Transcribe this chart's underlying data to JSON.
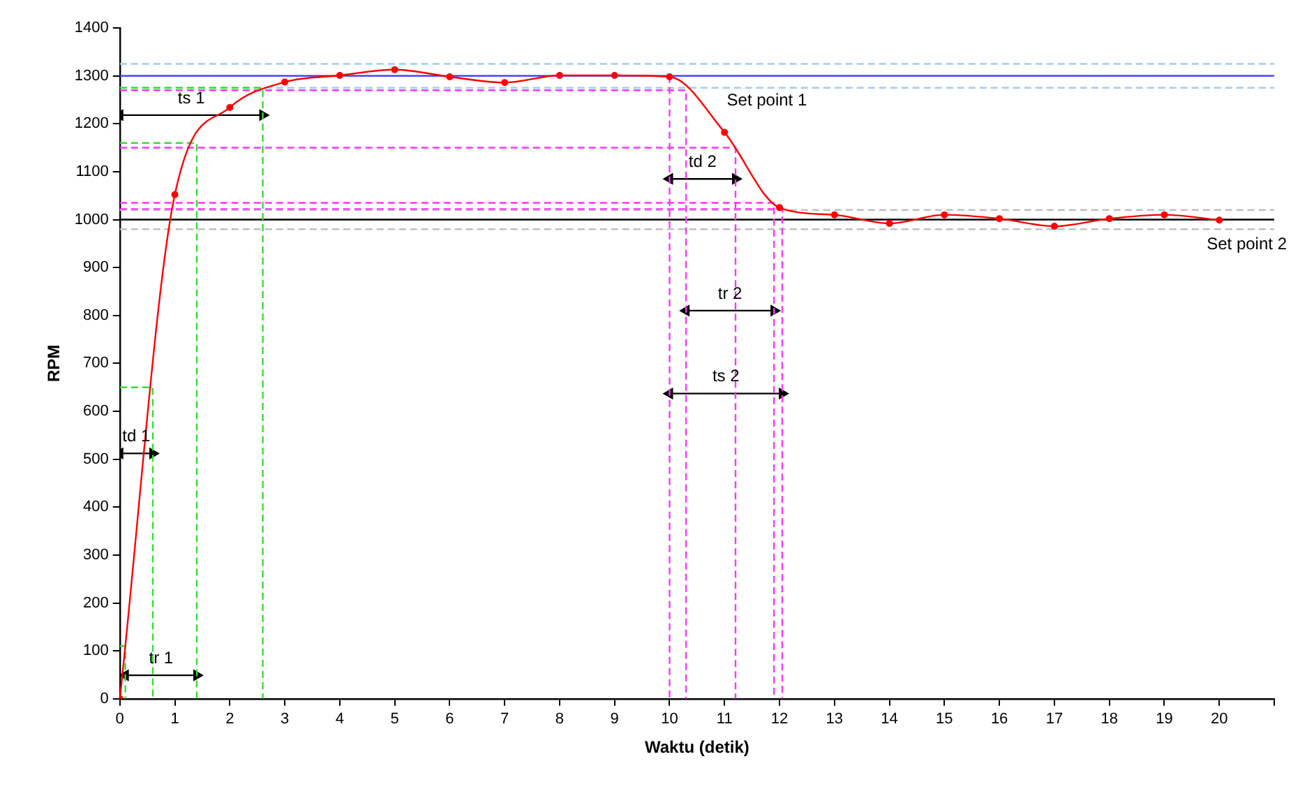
{
  "chart_data": {
    "type": "line",
    "xlabel": "Waktu (detik)",
    "ylabel": "RPM",
    "xlim": [
      0,
      21
    ],
    "xticks": [
      0,
      1,
      2,
      3,
      4,
      5,
      6,
      7,
      8,
      9,
      10,
      11,
      12,
      13,
      14,
      15,
      16,
      17,
      18,
      19,
      20,
      {
        "value": 21,
        "label": null
      }
    ],
    "ylim": [
      0,
      1400
    ],
    "yticks": [
      0,
      100,
      200,
      300,
      400,
      500,
      600,
      700,
      800,
      900,
      1000,
      1100,
      1200,
      1300,
      1400
    ],
    "grid": false,
    "legend": false,
    "series": [
      {
        "color": "#ff0000",
        "marker": "circle",
        "line_style": "solid",
        "x": [
          0,
          1,
          2,
          3,
          4,
          5,
          6,
          7,
          8,
          9,
          10,
          11,
          12,
          13,
          14,
          15,
          16,
          17,
          18,
          19,
          20
        ],
        "values": [
          0,
          1052,
          1234,
          1287,
          1301,
          1313,
          1298,
          1286,
          1301,
          1301,
          1298,
          1182,
          1025,
          1010,
          992,
          1010,
          1002,
          986,
          1002,
          1010,
          999
        ]
      },
      {
        "color": "#33dd33",
        "marker": "none",
        "line_style": "dashed",
        "x": [
          0,
          2.6,
          2.6
        ],
        "values": [
          1275,
          1275,
          0
        ]
      },
      {
        "color": "#33dd33",
        "marker": "none",
        "line_style": "dashed",
        "x": [
          0,
          1.4,
          1.4
        ],
        "values": [
          1160,
          1160,
          0
        ]
      },
      {
        "color": "#33dd33",
        "marker": "none",
        "line_style": "dashed",
        "x": [
          0,
          0.6,
          0.6
        ],
        "values": [
          650,
          650,
          0
        ]
      },
      {
        "color": "#33dd33",
        "marker": "none",
        "line_style": "dashed",
        "x": [
          0,
          0.1,
          0.1
        ],
        "values": [
          110,
          110,
          0
        ]
      },
      {
        "color": "#ff33ff",
        "marker": "none",
        "line_style": "dashed",
        "x": [
          10,
          10
        ],
        "values": [
          1300,
          0
        ]
      },
      {
        "color": "#ff33ff",
        "marker": "none",
        "line_style": "dashed",
        "x": [
          0,
          10.3,
          10.3
        ],
        "values": [
          1270,
          1270,
          0
        ]
      },
      {
        "color": "#ff33ff",
        "marker": "none",
        "line_style": "dashed",
        "x": [
          0,
          11.2,
          11.2
        ],
        "values": [
          1150,
          1150,
          0
        ]
      },
      {
        "color": "#ff33ff",
        "marker": "none",
        "line_style": "dashed",
        "x": [
          0,
          11.9,
          11.9
        ],
        "values": [
          1035,
          1035,
          0
        ]
      },
      {
        "color": "#ff33ff",
        "marker": "none",
        "line_style": "dashed",
        "x": [
          0,
          12.05,
          12.05
        ],
        "values": [
          1022,
          1022,
          0
        ]
      },
      {
        "color": "#000000",
        "marker": "triangle",
        "line_style": "solid",
        "x": [
          0,
          2.6
        ],
        "values": [
          1218,
          1218
        ]
      },
      {
        "color": "#000000",
        "marker": "triangle",
        "line_style": "solid",
        "x": [
          0,
          0.6
        ],
        "values": [
          512,
          512
        ]
      },
      {
        "color": "#000000",
        "marker": "triangle",
        "line_style": "solid",
        "x": [
          0.1,
          1.4
        ],
        "values": [
          49,
          49
        ]
      },
      {
        "color": "#000000",
        "marker": "triangle",
        "line_style": "solid",
        "x": [
          10,
          11.2
        ],
        "values": [
          1085,
          1085
        ]
      },
      {
        "color": "#000000",
        "marker": "triangle",
        "line_style": "solid",
        "x": [
          10.3,
          11.9
        ],
        "values": [
          810,
          810
        ]
      },
      {
        "color": "#000000",
        "marker": "triangle",
        "line_style": "solid",
        "x": [
          10,
          12.05
        ],
        "values": [
          637,
          637
        ]
      }
    ],
    "ref_lines": [
      {
        "axis": "y",
        "value": 1325,
        "color": "#a6caf0",
        "line_style": "dashed"
      },
      {
        "axis": "y",
        "value": 1300,
        "color": "#3333ff",
        "line_style": "solid"
      },
      {
        "axis": "y",
        "value": 1275,
        "color": "#a6caf0",
        "line_style": "dashed"
      },
      {
        "axis": "y",
        "value": 1020,
        "color": "#c0c0c0",
        "line_style": "dashed"
      },
      {
        "axis": "y",
        "value": 1000,
        "color": "#000000",
        "line_style": "solid"
      },
      {
        "axis": "y",
        "value": 980,
        "color": "#c0c0c0",
        "line_style": "dashed"
      }
    ],
    "annotations": [
      {
        "text": "ts 1",
        "x": 1.3,
        "y": 1218
      },
      {
        "text": "td 1",
        "x": 0.3,
        "y": 512
      },
      {
        "text": "tr 1",
        "x": 0.75,
        "y": 49
      },
      {
        "text": "Set point 1",
        "x": 11.77,
        "y": 1300
      },
      {
        "text": "td 2",
        "x": 10.6,
        "y": 1085
      },
      {
        "text": "tr 2",
        "x": 11.1,
        "y": 810
      },
      {
        "text": "ts 2",
        "x": 11.025,
        "y": 637
      },
      {
        "text": "Set point 2",
        "x": 20.5,
        "y": 1000
      }
    ]
  }
}
